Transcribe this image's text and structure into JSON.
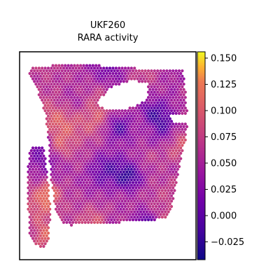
{
  "chart_data": {
    "type": "heatmap",
    "title": "UKF260",
    "subtitle": "RARA activity",
    "colormap": "plasma",
    "colorbar": {
      "ticks": [
        0.15,
        0.125,
        0.1,
        0.075,
        0.05,
        0.025,
        0.0,
        -0.025
      ],
      "tick_labels": [
        "0.150",
        "0.125",
        "0.100",
        "0.075",
        "0.050",
        "0.025",
        "0.000",
        "−0.025"
      ],
      "vmin": -0.042,
      "vmax": 0.156
    },
    "field_regions": [
      {
        "x": 0.5,
        "y": 0.55,
        "value": 0.035
      },
      {
        "x": 0.62,
        "y": 0.6,
        "value": -0.02
      },
      {
        "x": 0.55,
        "y": 0.36,
        "value": 0.0
      },
      {
        "x": 0.42,
        "y": 0.82,
        "value": 0.1
      },
      {
        "x": 0.13,
        "y": 0.88,
        "value": 0.11
      },
      {
        "x": 0.22,
        "y": 0.46,
        "value": 0.12
      },
      {
        "x": 0.15,
        "y": 0.72,
        "value": 0.09
      }
    ]
  },
  "colors": {
    "frame": "#000000",
    "background": "#ffffff"
  }
}
